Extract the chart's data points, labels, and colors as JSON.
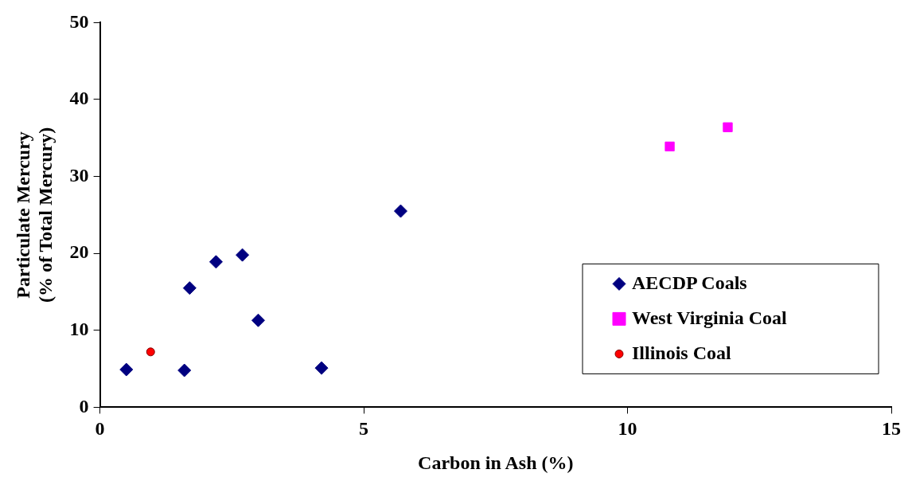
{
  "chart_data": {
    "type": "scatter",
    "xlabel": "Carbon in Ash (%)",
    "ylabel": "Particulate Mercury\n(% of Total Mercury)",
    "xlim": [
      0,
      15
    ],
    "xticks": [
      0,
      5,
      10,
      15
    ],
    "ylim": [
      0,
      50
    ],
    "yticks": [
      0,
      10,
      20,
      30,
      40,
      50
    ],
    "grid": false,
    "legend": "bottom right",
    "series": [
      {
        "name": "AECDP Coals",
        "color": "#000080",
        "marker": "diamond",
        "x": [
          0.5,
          1.6,
          1.7,
          2.2,
          2.7,
          3.0,
          4.2,
          5.7
        ],
        "values": [
          4.9,
          4.8,
          15.5,
          18.9,
          19.8,
          11.3,
          5.1,
          25.5
        ]
      },
      {
        "name": "West Virginia Coal",
        "color": "#ff00ff",
        "marker": "square",
        "x": [
          10.8,
          11.9
        ],
        "values": [
          33.9,
          36.4
        ]
      },
      {
        "name": "Illinois Coal",
        "color": "#ff0000",
        "marker": "circle",
        "x": [
          0.96
        ],
        "values": [
          7.2
        ]
      }
    ]
  }
}
